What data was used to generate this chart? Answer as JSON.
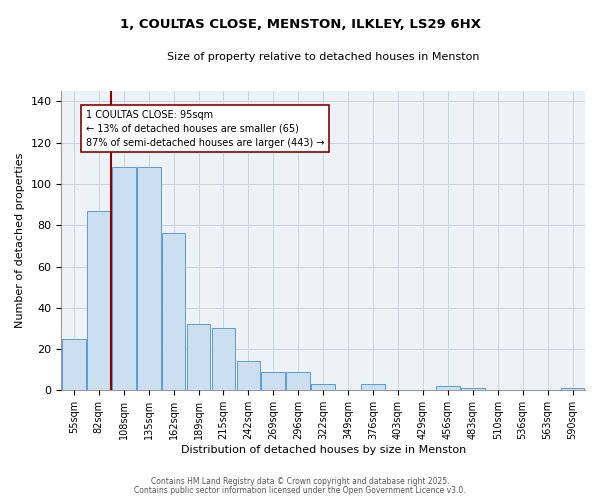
{
  "title": "1, COULTAS CLOSE, MENSTON, ILKLEY, LS29 6HX",
  "subtitle": "Size of property relative to detached houses in Menston",
  "xlabel": "Distribution of detached houses by size in Menston",
  "ylabel": "Number of detached properties",
  "bar_color": "#ccdff0",
  "bar_edge_color": "#5b9bd5",
  "grid_color": "#c8d4e0",
  "background_color": "#edf2f7",
  "categories": [
    "55sqm",
    "82sqm",
    "108sqm",
    "135sqm",
    "162sqm",
    "189sqm",
    "215sqm",
    "242sqm",
    "269sqm",
    "296sqm",
    "322sqm",
    "349sqm",
    "376sqm",
    "403sqm",
    "429sqm",
    "456sqm",
    "483sqm",
    "510sqm",
    "536sqm",
    "563sqm",
    "590sqm"
  ],
  "values": [
    25,
    87,
    108,
    108,
    76,
    32,
    30,
    14,
    9,
    9,
    3,
    0,
    3,
    0,
    0,
    2,
    1,
    0,
    0,
    0,
    1
  ],
  "ylim": [
    0,
    145
  ],
  "yticks": [
    0,
    20,
    40,
    60,
    80,
    100,
    120,
    140
  ],
  "property_label": "1 COULTAS CLOSE: 95sqm",
  "arrow_left_text": "← 13% of detached houses are smaller (65)",
  "arrow_right_text": "87% of semi-detached houses are larger (443) →",
  "footer_line1": "Contains HM Land Registry data © Crown copyright and database right 2025.",
  "footer_line2": "Contains public sector information licensed under the Open Government Licence v3.0.",
  "vline_color": "#8b0000"
}
